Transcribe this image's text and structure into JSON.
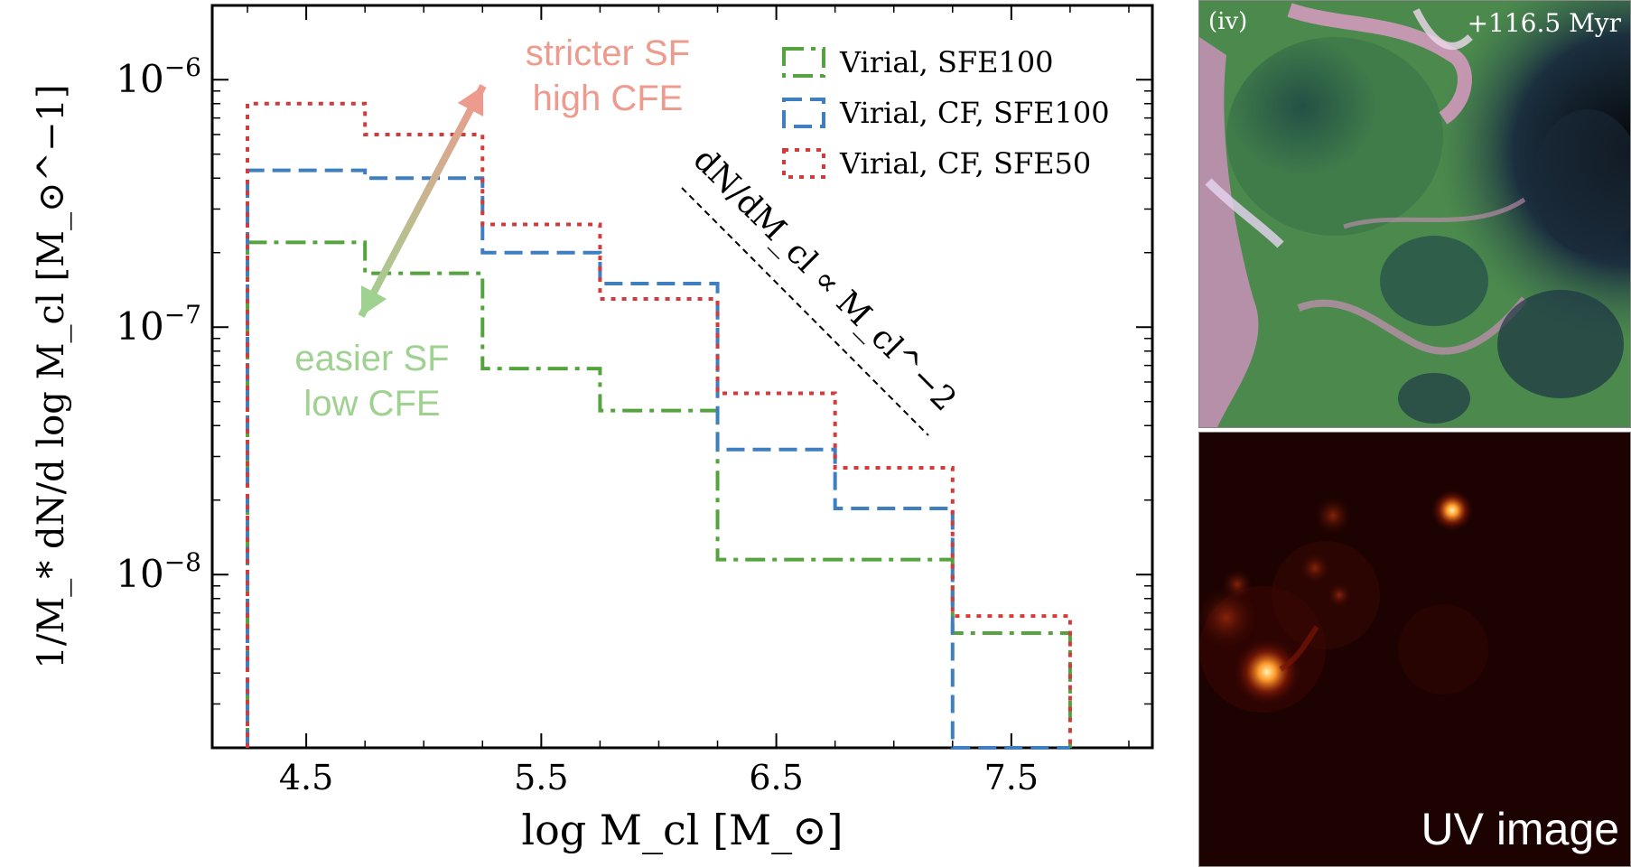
{
  "chart_data": {
    "type": "histogram",
    "xlabel": "log M_cl [M_⊙]",
    "ylabel": "1/M_* dN/d log M_cl [M_⊙^−1]",
    "xlim": [
      4.1,
      8.1
    ],
    "ylim_log10": [
      -8.7,
      -5.7
    ],
    "yscale": "log",
    "x_ticks": [
      "4.5",
      "5.5",
      "6.5",
      "7.5"
    ],
    "y_ticks": [
      "10^−6",
      "10^−7",
      "10^−8"
    ],
    "bin_edges": [
      4.25,
      4.75,
      5.25,
      5.75,
      6.25,
      6.75,
      7.25,
      7.75
    ],
    "legend_position": "top-right",
    "series": [
      {
        "name": "Virial, SFE100",
        "color": "#55a33f",
        "dash": "dashdot",
        "values": [
          2.2e-07,
          1.65e-07,
          6.8e-08,
          4.6e-08,
          1.15e-08,
          1.15e-08,
          5.8e-09
        ]
      },
      {
        "name": "Virial, CF, SFE100",
        "color": "#3f7fbf",
        "dash": "dashed",
        "values": [
          4.3e-07,
          4e-07,
          2e-07,
          1.5e-07,
          3.2e-08,
          1.85e-08,
          null
        ]
      },
      {
        "name": "Virial, CF, SFE50",
        "color": "#d13b3b",
        "dash": "dotted",
        "values": [
          8e-07,
          6e-07,
          2.6e-07,
          1.3e-07,
          5.4e-08,
          2.7e-08,
          6.8e-09
        ]
      }
    ],
    "annotations": {
      "stricter": [
        "stricter SF",
        "high CFE"
      ],
      "easier": [
        "easier SF",
        "low CFE"
      ],
      "slope": "dN/dM_cl ∝ M_cl^−2"
    }
  },
  "panels": {
    "density": {
      "tag": "(iv)",
      "time": "+116.5 Myr"
    },
    "uv": {
      "label": "UV image"
    }
  },
  "colors": {
    "stricter": "#ec9b8e",
    "easier": "#9fd190",
    "axis": "#000000"
  }
}
